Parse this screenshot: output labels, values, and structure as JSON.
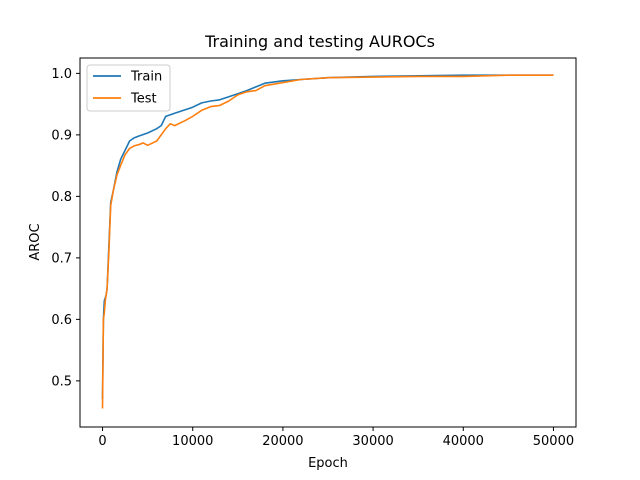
{
  "chart_data": {
    "type": "line",
    "title": "Training and testing AUROCs",
    "xlabel": "Epoch",
    "ylabel": "AROC",
    "xlim": [
      -2500,
      52500
    ],
    "ylim": [
      0.425,
      1.025
    ],
    "xticks": [
      0,
      10000,
      20000,
      30000,
      40000,
      50000
    ],
    "yticks": [
      0.5,
      0.6,
      0.7,
      0.8,
      0.9,
      1.0
    ],
    "grid": false,
    "legend_position": "top-left",
    "series": [
      {
        "name": "Train",
        "color": "#1f77b4",
        "x": [
          0,
          100,
          200,
          300,
          400,
          500,
          700,
          900,
          1200,
          1600,
          2000,
          2500,
          3000,
          3500,
          4000,
          5000,
          6000,
          6500,
          7000,
          8000,
          9000,
          10000,
          11000,
          12000,
          13000,
          14000,
          15000,
          16000,
          17000,
          18000,
          20000,
          22000,
          25000,
          30000,
          35000,
          40000,
          45000,
          50000
        ],
        "y": [
          0.47,
          0.6,
          0.63,
          0.635,
          0.64,
          0.65,
          0.72,
          0.79,
          0.81,
          0.84,
          0.86,
          0.875,
          0.89,
          0.895,
          0.898,
          0.903,
          0.91,
          0.915,
          0.93,
          0.935,
          0.94,
          0.945,
          0.952,
          0.955,
          0.957,
          0.962,
          0.967,
          0.972,
          0.978,
          0.984,
          0.988,
          0.99,
          0.993,
          0.995,
          0.996,
          0.997,
          0.997,
          0.997
        ]
      },
      {
        "name": "Test",
        "color": "#ff7f0e",
        "x": [
          0,
          100,
          200,
          300,
          400,
          500,
          700,
          900,
          1200,
          1600,
          2000,
          2500,
          3000,
          3500,
          4000,
          4500,
          5000,
          6000,
          6500,
          7000,
          7500,
          8000,
          9000,
          10000,
          11000,
          12000,
          13000,
          14000,
          15000,
          16000,
          17000,
          18000,
          20000,
          22000,
          25000,
          30000,
          35000,
          40000,
          45000,
          50000
        ],
        "y": [
          0.455,
          0.6,
          0.61,
          0.63,
          0.64,
          0.65,
          0.71,
          0.785,
          0.81,
          0.835,
          0.85,
          0.868,
          0.878,
          0.882,
          0.884,
          0.887,
          0.883,
          0.89,
          0.9,
          0.91,
          0.918,
          0.915,
          0.922,
          0.93,
          0.94,
          0.946,
          0.948,
          0.955,
          0.965,
          0.97,
          0.972,
          0.98,
          0.985,
          0.99,
          0.993,
          0.994,
          0.995,
          0.995,
          0.997,
          0.997
        ]
      }
    ]
  }
}
